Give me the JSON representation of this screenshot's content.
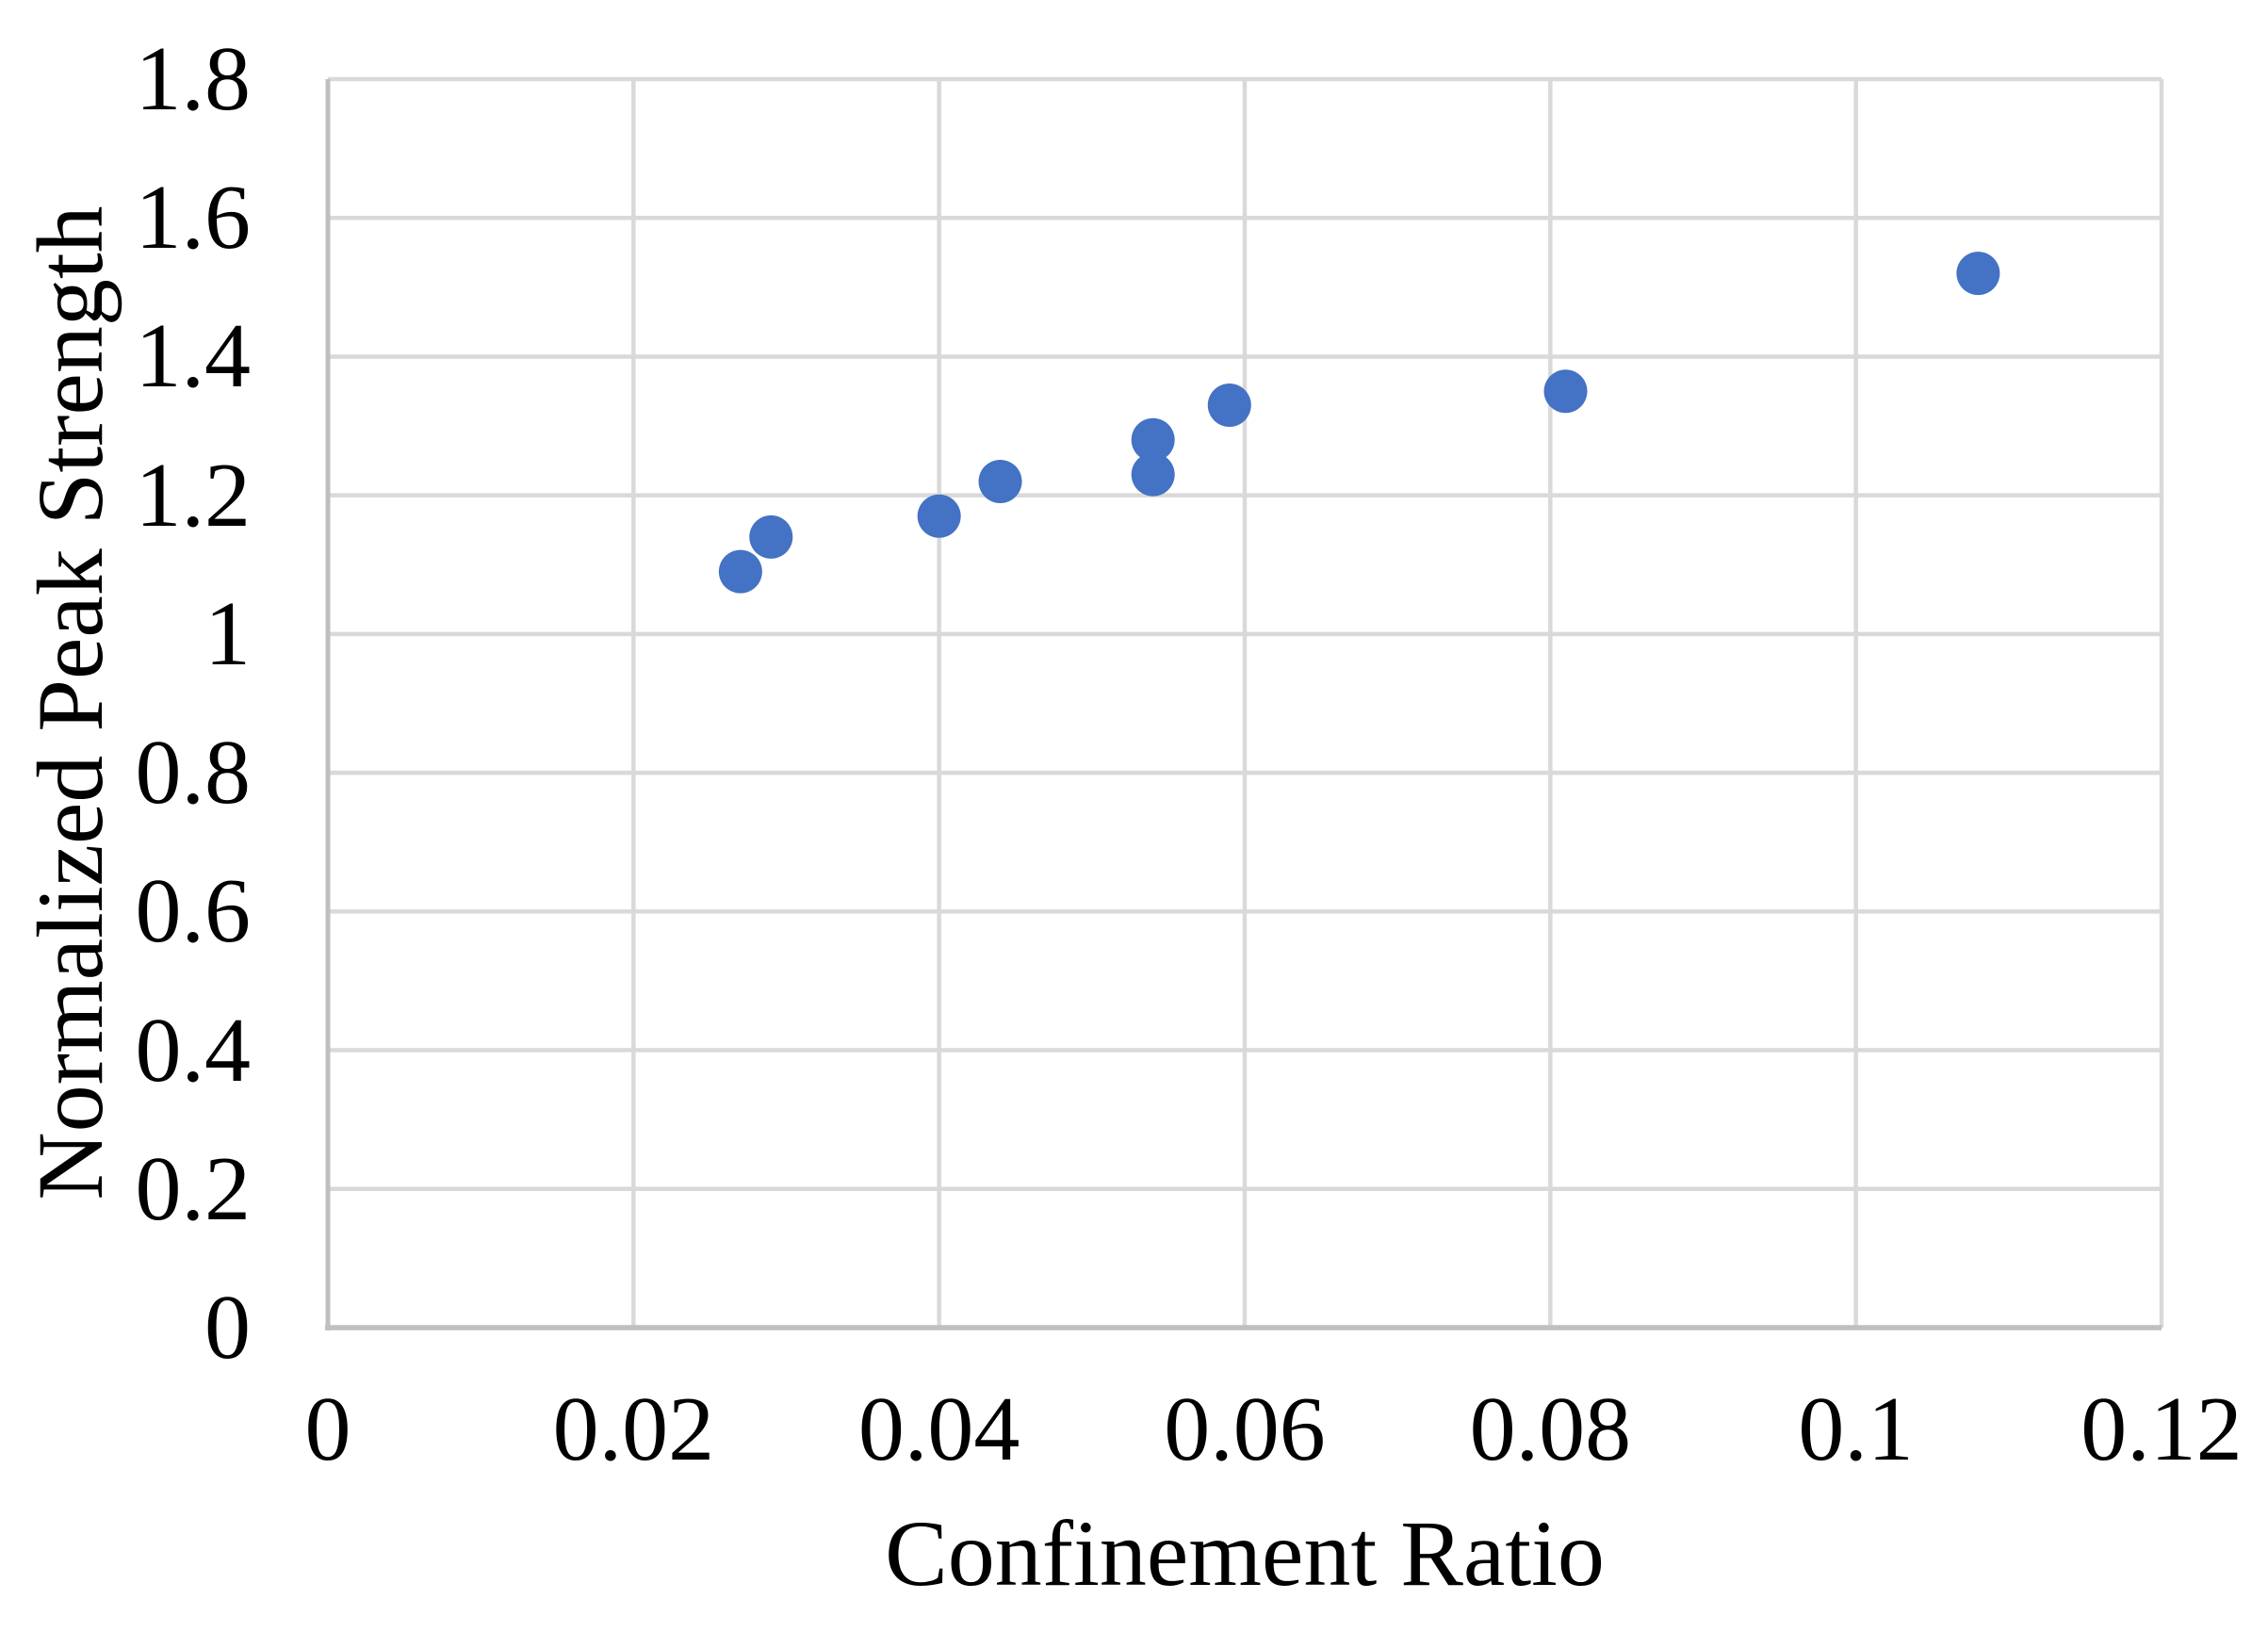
{
  "chart_data": {
    "type": "scatter",
    "xlabel": "Confinement Ratio",
    "ylabel": "Normalized Peak Strength",
    "xlim": [
      0,
      0.12
    ],
    "ylim": [
      0,
      1.8
    ],
    "x_ticks": [
      0,
      0.02,
      0.04,
      0.06,
      0.08,
      0.1,
      0.12
    ],
    "x_tick_labels": [
      "0",
      "0.02",
      "0.04",
      "0.06",
      "0.08",
      "0.1",
      "0.12"
    ],
    "y_ticks": [
      0,
      0.2,
      0.4,
      0.6,
      0.8,
      1,
      1.2,
      1.4,
      1.6,
      1.8
    ],
    "y_tick_labels": [
      "0",
      "0.2",
      "0.4",
      "0.6",
      "0.8",
      "1",
      "1.2",
      "1.4",
      "1.6",
      "1.8"
    ],
    "grid": true,
    "legend": "none",
    "points": [
      {
        "x": 0.027,
        "y": 1.09
      },
      {
        "x": 0.029,
        "y": 1.14
      },
      {
        "x": 0.04,
        "y": 1.17
      },
      {
        "x": 0.044,
        "y": 1.22
      },
      {
        "x": 0.054,
        "y": 1.28
      },
      {
        "x": 0.054,
        "y": 1.23
      },
      {
        "x": 0.059,
        "y": 1.33
      },
      {
        "x": 0.081,
        "y": 1.35
      },
      {
        "x": 0.108,
        "y": 1.52
      }
    ],
    "marker": {
      "shape": "circle",
      "radius_px": 23
    },
    "colors": {
      "point": "#4472C4",
      "gridline": "#D9D9D9",
      "axis_line": "#BFBFBF",
      "text": "#000000",
      "background": "#FFFFFF"
    }
  }
}
